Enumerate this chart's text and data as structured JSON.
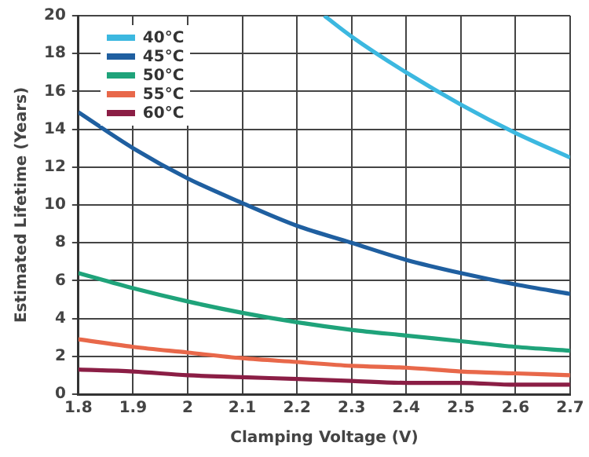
{
  "chart_data": {
    "type": "line",
    "xlabel": "Clamping Voltage (V)",
    "ylabel": "Estimated Lifetime (Years)",
    "x": [
      1.8,
      1.9,
      2,
      2.1,
      2.2,
      2.3,
      2.4,
      2.5,
      2.6,
      2.7
    ],
    "series": [
      {
        "name": "40°C",
        "color": "#3cb8e0",
        "x": [
          2.25,
          2.3,
          2.4,
          2.5,
          2.6,
          2.7
        ],
        "values": [
          20,
          18.9,
          17,
          15.3,
          13.8,
          12.5
        ]
      },
      {
        "name": "45°C",
        "color": "#1f5fa0",
        "values": [
          14.9,
          13,
          11.4,
          10.1,
          8.9,
          8,
          7.1,
          6.4,
          5.8,
          5.3
        ]
      },
      {
        "name": "50°C",
        "color": "#1fa37a",
        "values": [
          6.4,
          5.6,
          4.9,
          4.3,
          3.8,
          3.4,
          3.1,
          2.8,
          2.5,
          2.3
        ]
      },
      {
        "name": "55°C",
        "color": "#e8684a",
        "values": [
          2.9,
          2.5,
          2.2,
          1.9,
          1.7,
          1.5,
          1.4,
          1.2,
          1.1,
          1
        ]
      },
      {
        "name": "60°C",
        "color": "#8b1e45",
        "values": [
          1.3,
          1.2,
          1,
          0.9,
          0.8,
          0.7,
          0.6,
          0.6,
          0.5,
          0.5
        ]
      }
    ],
    "xlim": [
      1.8,
      2.7
    ],
    "xticks": [
      1.8,
      1.9,
      2,
      2.1,
      2.2,
      2.3,
      2.4,
      2.5,
      2.6,
      2.7
    ],
    "ylim": [
      0,
      20
    ],
    "yticks": [
      0,
      2,
      4,
      6,
      8,
      10,
      12,
      14,
      16,
      18,
      20
    ],
    "grid": true,
    "legend": "top left",
    "marker": "none",
    "line_style": "solid"
  }
}
